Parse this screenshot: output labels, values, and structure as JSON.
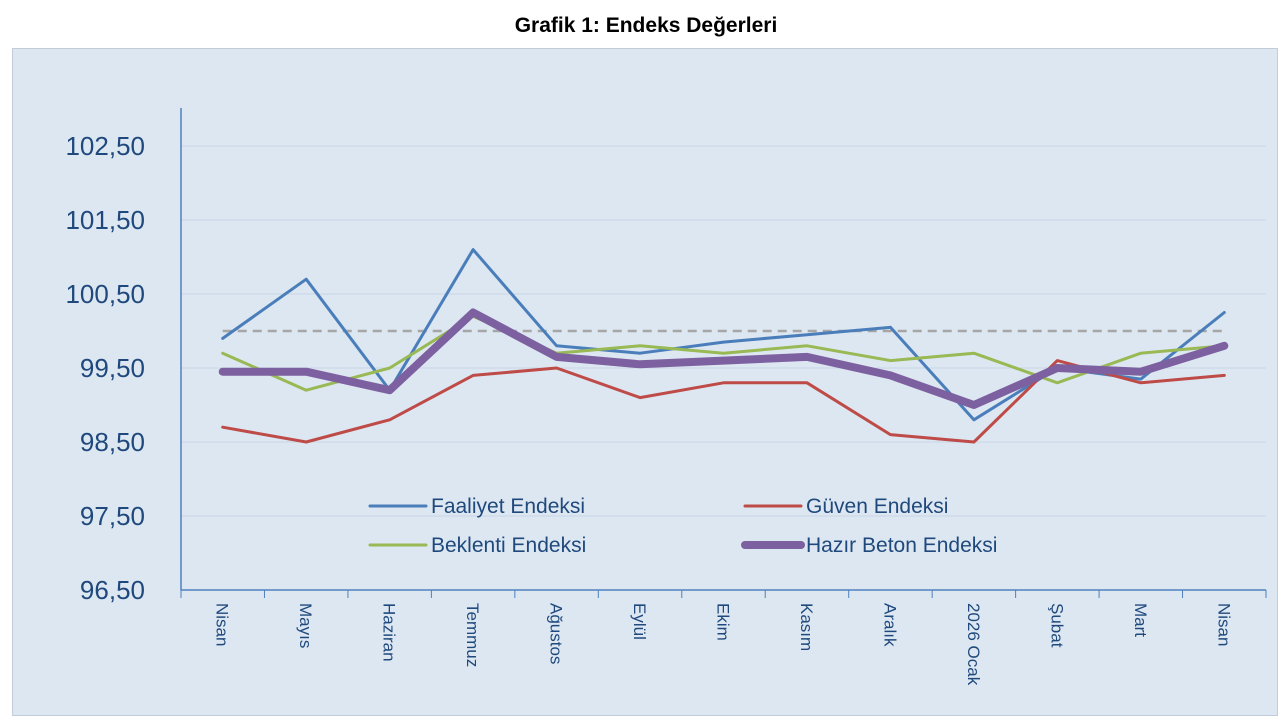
{
  "chart_data": {
    "type": "line",
    "title": "Grafik 1: Endeks Değerleri",
    "xlabel": "",
    "ylabel": "",
    "categories": [
      "Nisan",
      "Mayıs",
      "Haziran",
      "Temmuz",
      "Ağustos",
      "Eylül",
      "Ekim",
      "Kasım",
      "Aralık",
      "2026 Ocak",
      "Şubat",
      "Mart",
      "Nisan"
    ],
    "yticks": [
      "96,50",
      "97,50",
      "98,50",
      "99,50",
      "100,50",
      "101,50",
      "102,50"
    ],
    "ylim": [
      96.5,
      102.5
    ],
    "reference_line": 100,
    "grid": true,
    "legend_position": "bottom-center",
    "series": [
      {
        "name": "Faaliyet Endeksi",
        "color": "#4a7ebb",
        "values": [
          99.9,
          100.7,
          99.2,
          101.1,
          99.8,
          99.7,
          99.85,
          99.95,
          100.05,
          98.8,
          99.5,
          99.35,
          100.25
        ]
      },
      {
        "name": "Güven Endeksi",
        "color": "#be4b48",
        "values": [
          98.7,
          98.5,
          98.8,
          99.4,
          99.5,
          99.1,
          99.3,
          99.3,
          98.6,
          98.5,
          99.6,
          99.3,
          99.4
        ]
      },
      {
        "name": "Beklenti Endeksi",
        "color": "#98b954",
        "values": [
          99.7,
          99.2,
          99.5,
          100.2,
          99.7,
          99.8,
          99.7,
          99.8,
          99.6,
          99.7,
          99.3,
          99.7,
          99.8
        ]
      },
      {
        "name": "Hazır Beton Endeksi",
        "color": "#7d60a0",
        "values": [
          99.45,
          99.45,
          99.2,
          100.25,
          99.65,
          99.55,
          99.6,
          99.65,
          99.4,
          99.0,
          99.5,
          99.45,
          99.8
        ]
      }
    ]
  }
}
